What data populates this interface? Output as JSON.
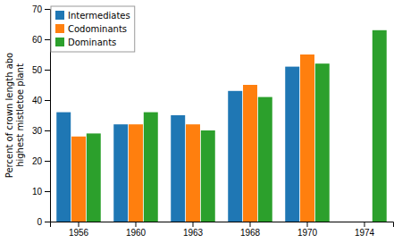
{
  "chart_data": {
    "type": "bar",
    "categories": [
      "1956",
      "1960",
      "1963",
      "1968",
      "1970",
      "1974"
    ],
    "series": [
      {
        "name": "Intermediates",
        "values": [
          36,
          32,
          35,
          43,
          51,
          null
        ]
      },
      {
        "name": "Codominants",
        "values": [
          28,
          32,
          32,
          45,
          55,
          null
        ]
      },
      {
        "name": "Dominants",
        "values": [
          29,
          36,
          30,
          41,
          52,
          63
        ]
      }
    ],
    "ylabel": "Percent of crown length abo\nhighest mistletoe plant",
    "ylim": [
      0,
      70
    ],
    "yticks": [
      0,
      10,
      20,
      30,
      40,
      50,
      60,
      70
    ],
    "grid": false,
    "legend": "upper left"
  }
}
